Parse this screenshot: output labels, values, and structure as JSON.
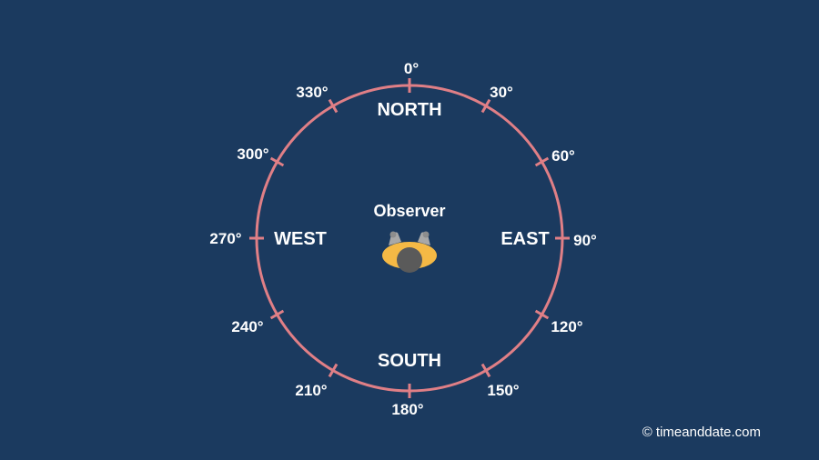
{
  "colors": {
    "background": "#1b3a5f",
    "ring": "#e07f86",
    "text": "#ffffff",
    "observer_shoulders": "#f5b945",
    "observer_head": "#5a5a5a",
    "observer_arms": "#a8a8a8"
  },
  "observer": {
    "label": "Observer",
    "icon": "person-top-view-icon"
  },
  "cardinals": {
    "north": "NORTH",
    "east": "EAST",
    "south": "SOUTH",
    "west": "WEST"
  },
  "degrees": [
    "0°",
    "30°",
    "60°",
    "90°",
    "120°",
    "150°",
    "180°",
    "210°",
    "240°",
    "270°",
    "300°",
    "330°"
  ],
  "copyright": "© timeanddate.com"
}
